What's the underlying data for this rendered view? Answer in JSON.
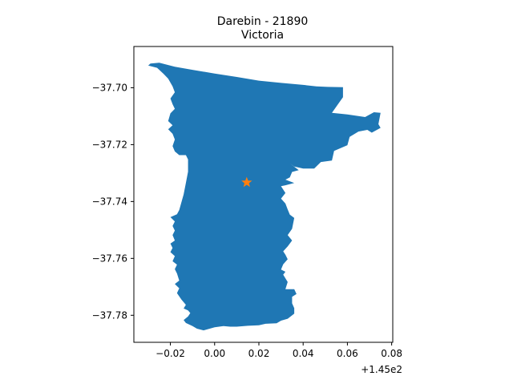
{
  "chart_data": {
    "type": "map",
    "title_line1": "Darebin - 21890",
    "title_line2": "Victoria",
    "x_offset_label": "+1.45e2",
    "xlim": [
      -0.0365,
      0.0805
    ],
    "ylim": [
      -37.7895,
      -37.6855
    ],
    "x_ticks": [
      -0.02,
      0.0,
      0.02,
      0.04,
      0.06,
      0.08
    ],
    "x_tick_labels": [
      "−0.02",
      "0.00",
      "0.02",
      "0.04",
      "0.06",
      "0.08"
    ],
    "y_ticks": [
      -37.7,
      -37.72,
      -37.74,
      -37.76,
      -37.78
    ],
    "y_tick_labels": [
      "−37.70",
      "−37.72",
      "−37.74",
      "−37.76",
      "−37.78"
    ],
    "region_fill": "#1f77b4",
    "marker_color": "#ff7f0e",
    "marker": {
      "x": 0.0145,
      "y": -37.7333,
      "symbol": "star"
    },
    "boundary": [
      [
        -0.029,
        -37.6915
      ],
      [
        -0.025,
        -37.6912
      ],
      [
        -0.018,
        -37.6926
      ],
      [
        -0.01,
        -37.6937
      ],
      [
        0.0,
        -37.695
      ],
      [
        0.01,
        -37.6962
      ],
      [
        0.02,
        -37.6975
      ],
      [
        0.03,
        -37.6983
      ],
      [
        0.04,
        -37.699
      ],
      [
        0.046,
        -37.6995
      ],
      [
        0.051,
        -37.6997
      ],
      [
        0.058,
        -37.6998
      ],
      [
        0.058,
        -37.7033
      ],
      [
        0.053,
        -37.7088
      ],
      [
        0.06,
        -37.7094
      ],
      [
        0.068,
        -37.7103
      ],
      [
        0.072,
        -37.7086
      ],
      [
        0.075,
        -37.7088
      ],
      [
        0.074,
        -37.7128
      ],
      [
        0.075,
        -37.7141
      ],
      [
        0.071,
        -37.7158
      ],
      [
        0.069,
        -37.7148
      ],
      [
        0.065,
        -37.7154
      ],
      [
        0.061,
        -37.7173
      ],
      [
        0.06,
        -37.7202
      ],
      [
        0.054,
        -37.7222
      ],
      [
        0.053,
        -37.7256
      ],
      [
        0.048,
        -37.7261
      ],
      [
        0.045,
        -37.7284
      ],
      [
        0.04,
        -37.7284
      ],
      [
        0.036,
        -37.7277
      ],
      [
        0.034,
        -37.7266
      ],
      [
        0.038,
        -37.729
      ],
      [
        0.035,
        -37.7296
      ],
      [
        0.034,
        -37.7315
      ],
      [
        0.032,
        -37.7323
      ],
      [
        0.036,
        -37.7335
      ],
      [
        0.032,
        -37.7343
      ],
      [
        0.03,
        -37.7346
      ],
      [
        0.032,
        -37.737
      ],
      [
        0.03,
        -37.739
      ],
      [
        0.032,
        -37.7407
      ],
      [
        0.033,
        -37.7428
      ],
      [
        0.034,
        -37.7446
      ],
      [
        0.036,
        -37.7458
      ],
      [
        0.035,
        -37.7496
      ],
      [
        0.033,
        -37.7518
      ],
      [
        0.035,
        -37.7537
      ],
      [
        0.033,
        -37.7558
      ],
      [
        0.031,
        -37.7575
      ],
      [
        0.032,
        -37.7587
      ],
      [
        0.033,
        -37.7603
      ],
      [
        0.031,
        -37.7621
      ],
      [
        0.03,
        -37.7639
      ],
      [
        0.032,
        -37.7647
      ],
      [
        0.031,
        -37.7657
      ],
      [
        0.033,
        -37.7683
      ],
      [
        0.032,
        -37.7708
      ],
      [
        0.036,
        -37.7708
      ],
      [
        0.037,
        -37.7725
      ],
      [
        0.035,
        -37.7735
      ],
      [
        0.035,
        -37.7758
      ],
      [
        0.036,
        -37.7775
      ],
      [
        0.036,
        -37.7794
      ],
      [
        0.033,
        -37.7812
      ],
      [
        0.03,
        -37.7819
      ],
      [
        0.028,
        -37.7828
      ],
      [
        0.023,
        -37.783
      ],
      [
        0.02,
        -37.7835
      ],
      [
        0.015,
        -37.7837
      ],
      [
        0.01,
        -37.784
      ],
      [
        0.007,
        -37.784
      ],
      [
        0.004,
        -37.7838
      ],
      [
        0.0,
        -37.7842
      ],
      [
        -0.005,
        -37.7853
      ],
      [
        -0.008,
        -37.7847
      ],
      [
        -0.01,
        -37.7838
      ],
      [
        -0.013,
        -37.7827
      ],
      [
        -0.014,
        -37.7817
      ],
      [
        -0.012,
        -37.7804
      ],
      [
        -0.011,
        -37.7792
      ],
      [
        -0.012,
        -37.7783
      ],
      [
        -0.014,
        -37.7776
      ],
      [
        -0.013,
        -37.7763
      ],
      [
        -0.015,
        -37.7745
      ],
      [
        -0.017,
        -37.7722
      ],
      [
        -0.016,
        -37.7705
      ],
      [
        -0.018,
        -37.769
      ],
      [
        -0.016,
        -37.7678
      ],
      [
        -0.017,
        -37.7653
      ],
      [
        -0.018,
        -37.7638
      ],
      [
        -0.017,
        -37.7622
      ],
      [
        -0.019,
        -37.761
      ],
      [
        -0.018,
        -37.7592
      ],
      [
        -0.02,
        -37.7578
      ],
      [
        -0.019,
        -37.7563
      ],
      [
        -0.02,
        -37.7548
      ],
      [
        -0.018,
        -37.7537
      ],
      [
        -0.019,
        -37.7518
      ],
      [
        -0.018,
        -37.7502
      ],
      [
        -0.019,
        -37.7486
      ],
      [
        -0.018,
        -37.747
      ],
      [
        -0.02,
        -37.7455
      ],
      [
        -0.017,
        -37.7445
      ],
      [
        -0.016,
        -37.743
      ],
      [
        -0.014,
        -37.7375
      ],
      [
        -0.013,
        -37.7335
      ],
      [
        -0.012,
        -37.7295
      ],
      [
        -0.012,
        -37.7252
      ],
      [
        -0.013,
        -37.7237
      ],
      [
        -0.016,
        -37.7237
      ],
      [
        -0.018,
        -37.7224
      ],
      [
        -0.019,
        -37.7205
      ],
      [
        -0.018,
        -37.7182
      ],
      [
        -0.019,
        -37.7162
      ],
      [
        -0.021,
        -37.7146
      ],
      [
        -0.019,
        -37.7132
      ],
      [
        -0.021,
        -37.7117
      ],
      [
        -0.02,
        -37.709
      ],
      [
        -0.018,
        -37.7074
      ],
      [
        -0.019,
        -37.7058
      ],
      [
        -0.02,
        -37.7038
      ],
      [
        -0.018,
        -37.7016
      ],
      [
        -0.019,
        -37.6995
      ],
      [
        -0.021,
        -37.6968
      ],
      [
        -0.023,
        -37.6952
      ],
      [
        -0.026,
        -37.693
      ],
      [
        -0.03,
        -37.6922
      ]
    ]
  }
}
